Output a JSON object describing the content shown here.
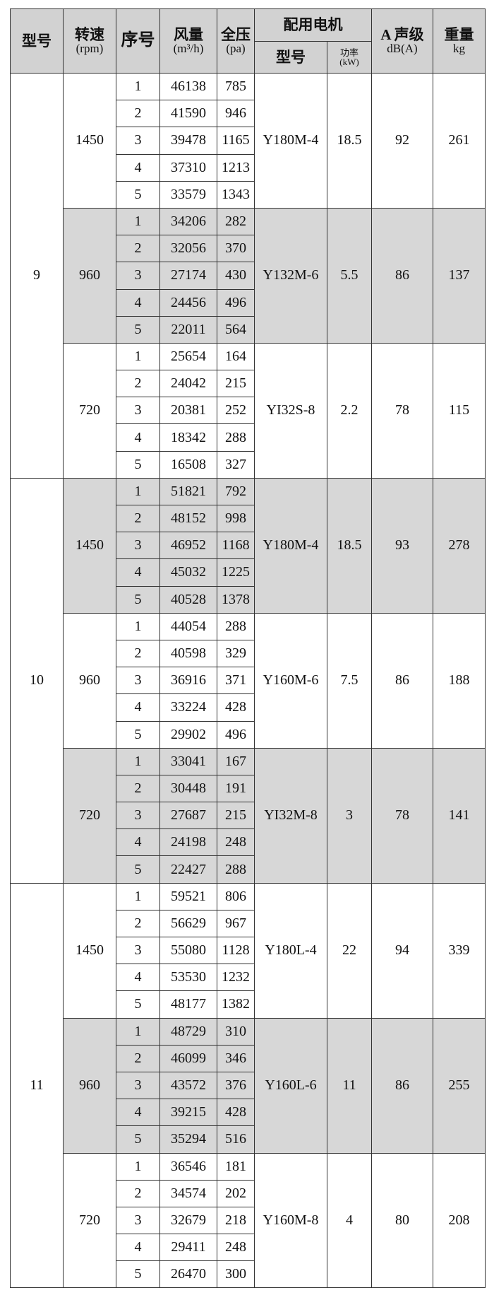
{
  "header": {
    "model": "型号",
    "speed": "转速",
    "speed_unit": "(rpm)",
    "seq": "序号",
    "flow": "风量",
    "flow_unit": "(m³/h)",
    "pressure": "全压",
    "pressure_unit": "(pa)",
    "motor": "配用电机",
    "motor_model": "型号",
    "motor_power": "功率",
    "motor_power_unit": "(kW)",
    "noise": "A 声级",
    "noise_unit": "dB(A)",
    "weight": "重量",
    "weight_unit": "kg"
  },
  "colors": {
    "header_bg": "#d2d2d2",
    "shaded_group_bg": "#d7d7d7"
  },
  "groups": [
    {
      "model": "9",
      "speeds": [
        {
          "speed": "1450",
          "motor": "Y180M-4",
          "power": "18.5",
          "noise": "92",
          "weight": "261",
          "shaded": false,
          "rows": [
            [
              "1",
              "46138",
              "785"
            ],
            [
              "2",
              "41590",
              "946"
            ],
            [
              "3",
              "39478",
              "1165"
            ],
            [
              "4",
              "37310",
              "1213"
            ],
            [
              "5",
              "33579",
              "1343"
            ]
          ]
        },
        {
          "speed": "960",
          "motor": "Y132M-6",
          "power": "5.5",
          "noise": "86",
          "weight": "137",
          "shaded": true,
          "rows": [
            [
              "1",
              "34206",
              "282"
            ],
            [
              "2",
              "32056",
              "370"
            ],
            [
              "3",
              "27174",
              "430"
            ],
            [
              "4",
              "24456",
              "496"
            ],
            [
              "5",
              "22011",
              "564"
            ]
          ]
        },
        {
          "speed": "720",
          "motor": "YI32S-8",
          "power": "2.2",
          "noise": "78",
          "weight": "115",
          "shaded": false,
          "rows": [
            [
              "1",
              "25654",
              "164"
            ],
            [
              "2",
              "24042",
              "215"
            ],
            [
              "3",
              "20381",
              "252"
            ],
            [
              "4",
              "18342",
              "288"
            ],
            [
              "5",
              "16508",
              "327"
            ]
          ]
        }
      ]
    },
    {
      "model": "10",
      "speeds": [
        {
          "speed": "1450",
          "motor": "Y180M-4",
          "power": "18.5",
          "noise": "93",
          "weight": "278",
          "shaded": true,
          "rows": [
            [
              "1",
              "51821",
              "792"
            ],
            [
              "2",
              "48152",
              "998"
            ],
            [
              "3",
              "46952",
              "1168"
            ],
            [
              "4",
              "45032",
              "1225"
            ],
            [
              "5",
              "40528",
              "1378"
            ]
          ]
        },
        {
          "speed": "960",
          "motor": "Y160M-6",
          "power": "7.5",
          "noise": "86",
          "weight": "188",
          "shaded": false,
          "rows": [
            [
              "1",
              "44054",
              "288"
            ],
            [
              "2",
              "40598",
              "329"
            ],
            [
              "3",
              "36916",
              "371"
            ],
            [
              "4",
              "33224",
              "428"
            ],
            [
              "5",
              "29902",
              "496"
            ]
          ]
        },
        {
          "speed": "720",
          "motor": "YI32M-8",
          "power": "3",
          "noise": "78",
          "weight": "141",
          "shaded": true,
          "rows": [
            [
              "1",
              "33041",
              "167"
            ],
            [
              "2",
              "30448",
              "191"
            ],
            [
              "3",
              "27687",
              "215"
            ],
            [
              "4",
              "24198",
              "248"
            ],
            [
              "5",
              "22427",
              "288"
            ]
          ]
        }
      ]
    },
    {
      "model": "11",
      "speeds": [
        {
          "speed": "1450",
          "motor": "Y180L-4",
          "power": "22",
          "noise": "94",
          "weight": "339",
          "shaded": false,
          "rows": [
            [
              "1",
              "59521",
              "806"
            ],
            [
              "2",
              "56629",
              "967"
            ],
            [
              "3",
              "55080",
              "1128"
            ],
            [
              "4",
              "53530",
              "1232"
            ],
            [
              "5",
              "48177",
              "1382"
            ]
          ]
        },
        {
          "speed": "960",
          "motor": "Y160L-6",
          "power": "11",
          "noise": "86",
          "weight": "255",
          "shaded": true,
          "rows": [
            [
              "1",
              "48729",
              "310"
            ],
            [
              "2",
              "46099",
              "346"
            ],
            [
              "3",
              "43572",
              "376"
            ],
            [
              "4",
              "39215",
              "428"
            ],
            [
              "5",
              "35294",
              "516"
            ]
          ]
        },
        {
          "speed": "720",
          "motor": "Y160M-8",
          "power": "4",
          "noise": "80",
          "weight": "208",
          "shaded": false,
          "rows": [
            [
              "1",
              "36546",
              "181"
            ],
            [
              "2",
              "34574",
              "202"
            ],
            [
              "3",
              "32679",
              "218"
            ],
            [
              "4",
              "29411",
              "248"
            ],
            [
              "5",
              "26470",
              "300"
            ]
          ]
        }
      ]
    }
  ]
}
